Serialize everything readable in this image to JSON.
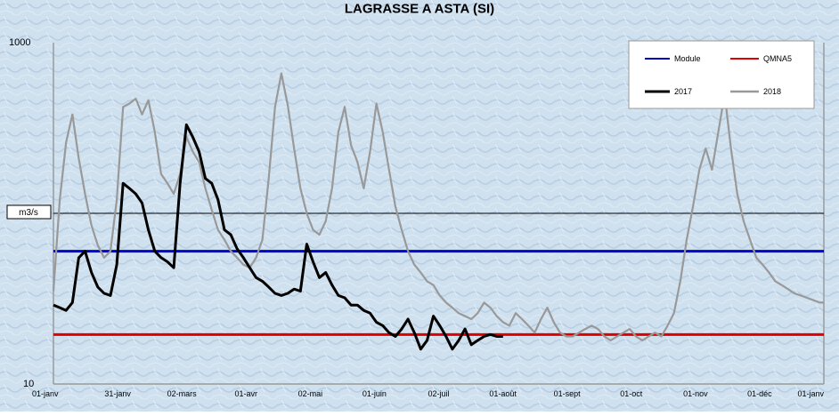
{
  "chart_data": {
    "type": "line",
    "title": "LAGRASSE A ASTA (SI)",
    "ylabel": "m3/s",
    "yscale": "log",
    "ylim": [
      10,
      1000
    ],
    "y_ticks": [
      "1000",
      "10"
    ],
    "xlabels": [
      "01-janv",
      "31-janv",
      "02-mars",
      "01-avr",
      "02-mai",
      "01-juin",
      "02-juil",
      "01-août",
      "01-sept",
      "01-oct",
      "01-nov",
      "01-déc",
      "01-janv"
    ],
    "grid": false,
    "legend_position": "top-right",
    "colors": {
      "module": "#0000cc",
      "qmna5": "#e00000",
      "y2017": "#000000",
      "y2018": "#999999",
      "background": "#cfe0ef"
    },
    "series": [
      {
        "name": "Module",
        "kind": "reference",
        "value": 60
      },
      {
        "name": "QMNA5",
        "kind": "reference",
        "value": 19.5
      },
      {
        "name": "2017",
        "day": [
          0,
          3,
          6,
          9,
          12,
          15,
          18,
          21,
          24,
          27,
          30,
          33,
          36,
          39,
          42,
          45,
          48,
          51,
          54,
          57,
          60,
          63,
          66,
          69,
          72,
          75,
          78,
          81,
          84,
          87,
          90,
          93,
          96,
          99,
          102,
          105,
          108,
          111,
          114,
          117,
          120,
          123,
          126,
          129,
          132,
          135,
          138,
          141,
          144,
          147,
          150,
          153,
          156,
          159,
          162,
          165,
          168,
          171,
          174,
          177,
          180,
          183,
          186,
          189,
          192,
          195,
          198,
          201,
          204,
          207,
          210,
          213
        ],
        "values": [
          29,
          28,
          27,
          30,
          55,
          60,
          45,
          37,
          34,
          33,
          50,
          150,
          140,
          130,
          115,
          80,
          60,
          55,
          52,
          48,
          150,
          330,
          280,
          230,
          160,
          150,
          120,
          80,
          75,
          62,
          55,
          48,
          42,
          40,
          37,
          34,
          33,
          34,
          36,
          35,
          66,
          52,
          42,
          45,
          38,
          33,
          32,
          29,
          29,
          27,
          26,
          23,
          22,
          20,
          19,
          21,
          24,
          20,
          16,
          18,
          25,
          22,
          19,
          16,
          18,
          21,
          17,
          18,
          19,
          19.5,
          19,
          19
        ]
      },
      {
        "name": "2018",
        "day": [
          0,
          3,
          6,
          9,
          12,
          15,
          18,
          21,
          24,
          27,
          30,
          33,
          36,
          39,
          42,
          45,
          48,
          51,
          54,
          57,
          60,
          63,
          66,
          69,
          72,
          75,
          78,
          81,
          84,
          87,
          90,
          93,
          96,
          99,
          102,
          105,
          108,
          111,
          114,
          117,
          120,
          123,
          126,
          129,
          132,
          135,
          138,
          141,
          144,
          147,
          150,
          153,
          156,
          159,
          162,
          165,
          168,
          171,
          174,
          177,
          180,
          183,
          186,
          189,
          192,
          195,
          198,
          201,
          204,
          207,
          210,
          213,
          216,
          219,
          222,
          225,
          228,
          231,
          234,
          237,
          240,
          243,
          246,
          249,
          252,
          255,
          258,
          261,
          264,
          267,
          270,
          273,
          276,
          279,
          282,
          285,
          288,
          291,
          294,
          297,
          300,
          303,
          306,
          309,
          312,
          315,
          318,
          321,
          324,
          327,
          330,
          333,
          336,
          339,
          342,
          345,
          348,
          351,
          354,
          357,
          360,
          363,
          365
        ],
        "values": [
          35,
          120,
          260,
          380,
          210,
          130,
          85,
          65,
          55,
          60,
          120,
          420,
          440,
          470,
          380,
          460,
          300,
          170,
          150,
          130,
          170,
          280,
          230,
          200,
          140,
          105,
          80,
          70,
          60,
          55,
          50,
          48,
          55,
          70,
          160,
          420,
          660,
          430,
          240,
          140,
          100,
          80,
          75,
          90,
          140,
          300,
          420,
          250,
          200,
          140,
          230,
          440,
          300,
          180,
          110,
          80,
          60,
          50,
          45,
          40,
          38,
          33,
          30,
          28,
          26,
          25,
          24,
          26,
          30,
          28,
          25,
          23,
          22,
          26,
          24,
          22,
          20,
          24,
          28,
          23,
          20,
          19,
          19,
          20,
          21,
          22,
          21,
          19,
          18,
          19,
          20,
          21,
          19,
          18,
          19,
          20,
          19,
          22,
          26,
          40,
          70,
          110,
          180,
          240,
          180,
          300,
          500,
          240,
          130,
          90,
          70,
          55,
          50,
          45,
          40,
          38,
          36,
          34,
          33,
          32,
          31,
          30,
          30
        ]
      }
    ]
  }
}
